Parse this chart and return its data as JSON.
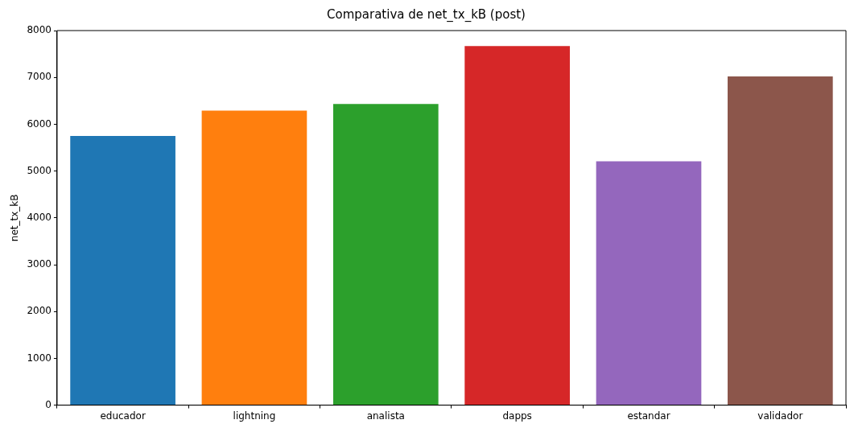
{
  "chart_data": {
    "type": "bar",
    "title": "Comparativa de net_tx_kB (post)",
    "ylabel": "net_tx_kB",
    "categories": [
      "educador",
      "lightning",
      "analista",
      "dapps",
      "estandar",
      "validador"
    ],
    "values": [
      5750,
      6290,
      6430,
      7670,
      5210,
      7020
    ],
    "colors": [
      "#1f77b4",
      "#ff7f0e",
      "#2ca02c",
      "#d62728",
      "#9467bd",
      "#8c564b"
    ],
    "ylim": [
      0,
      8000
    ],
    "yticks": [
      0,
      1000,
      2000,
      3000,
      4000,
      5000,
      6000,
      7000,
      8000
    ],
    "grid": false,
    "legend": false
  }
}
